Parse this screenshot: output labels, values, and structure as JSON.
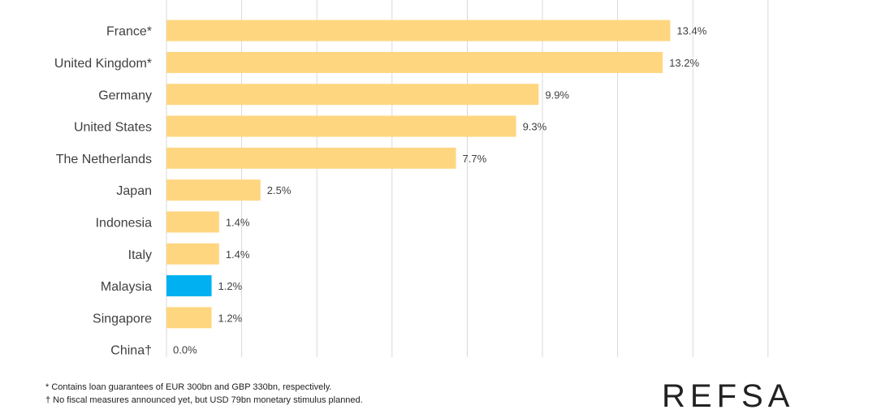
{
  "chart_data": {
    "type": "bar",
    "orientation": "horizontal",
    "categories": [
      "France*",
      "United Kingdom*",
      "Germany",
      "United States",
      "The Netherlands",
      "Japan",
      "Indonesia",
      "Italy",
      "Malaysia",
      "Singapore",
      "China†"
    ],
    "values": [
      13.4,
      13.2,
      9.9,
      9.3,
      7.7,
      2.5,
      1.4,
      1.4,
      1.2,
      1.2,
      0.0
    ],
    "value_labels": [
      "13.4%",
      "13.2%",
      "9.9%",
      "9.3%",
      "7.7%",
      "2.5%",
      "1.4%",
      "1.4%",
      "1.2%",
      "1.2%",
      "0.0%"
    ],
    "highlight_category": "Malaysia",
    "xlim": [
      0,
      16
    ],
    "gridlines": [
      0,
      2,
      4,
      6,
      8,
      10,
      12,
      14,
      16
    ],
    "grid": true,
    "colors": {
      "bar": "#FFD680",
      "highlight": "#00B0F0",
      "grid": "#D9D9D9"
    }
  },
  "footnotes": [
    "* Contains loan guarantees of EUR 300bn and GBP 330bn, respectively.",
    "† No fiscal measures announced yet, but USD 79bn monetary stimulus planned."
  ],
  "brand": "REFSA"
}
